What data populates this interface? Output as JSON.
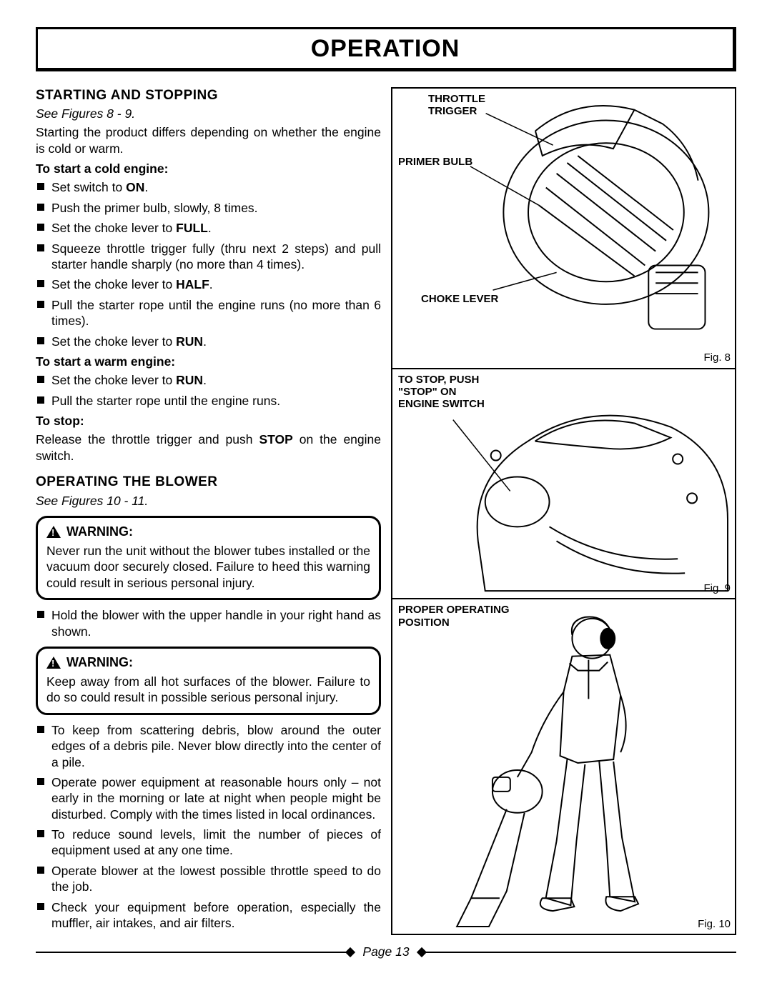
{
  "title": "OPERATION",
  "page_label": "Page 13",
  "left": {
    "section1": {
      "heading": "STARTING AND STOPPING",
      "figref": "See Figures 8 - 9.",
      "intro": "Starting the product differs depending on whether the engine is cold or warm.",
      "cold_head": "To start a cold engine:",
      "cold_items": [
        "Set switch to <b>ON</b>.",
        "Push the primer bulb, slowly, 8 times.",
        "Set the choke lever to <b>FULL</b>.",
        "Squeeze throttle trigger fully (thru next 2 steps) and pull starter handle sharply (no more than 4 times).",
        "Set the choke lever to <b>HALF</b>.",
        "Pull the starter rope until the engine runs (no more than 6 times).",
        "Set the choke lever to <b>RUN</b>."
      ],
      "warm_head": "To start a warm engine:",
      "warm_items": [
        "Set the choke lever to <b>RUN</b>.",
        "Pull the starter rope until the engine runs."
      ],
      "stop_head": "To stop:",
      "stop_text": "Release the throttle trigger and push <b>STOP</b> on the engine switch."
    },
    "section2": {
      "heading": "OPERATING THE BLOWER",
      "figref": "See Figures 10 - 11.",
      "warning1_head": "WARNING:",
      "warning1_text": "Never run the unit without the blower tubes installed or the vacuum door securely closed. Failure to heed this warning could result in serious personal injury.",
      "items1": [
        "Hold the blower with the upper handle in your right hand as shown."
      ],
      "warning2_head": "WARNING:",
      "warning2_text": "Keep away from all hot surfaces of the blower. Failure to do so could result in possible serious personal injury.",
      "items2": [
        "To keep from scattering debris, blow around the outer edges of a debris pile. Never blow directly into the center of a pile.",
        "Operate power equipment at reasonable hours only – not early in the morning or late at night when people might be disturbed. Comply with the times listed in local ordinances.",
        "To reduce sound levels, limit the number of pieces of equipment used at any one time.",
        "Operate blower at the lowest possible throttle speed to do the job.",
        "Check your equipment before operation, especially the muffler, air intakes, and air filters."
      ]
    }
  },
  "right": {
    "fig8": {
      "labels": {
        "throttle": "THROTTLE<br>TRIGGER",
        "primer": "PRIMER BULB",
        "choke": "CHOKE LEVER"
      },
      "num": "Fig. 8"
    },
    "fig9": {
      "label": "TO STOP, PUSH<br>\"STOP\" ON<br>ENGINE SWITCH",
      "num": "Fig. 9"
    },
    "fig10": {
      "label": "PROPER OPERATING<br>POSITION",
      "num": "Fig. 10"
    }
  }
}
